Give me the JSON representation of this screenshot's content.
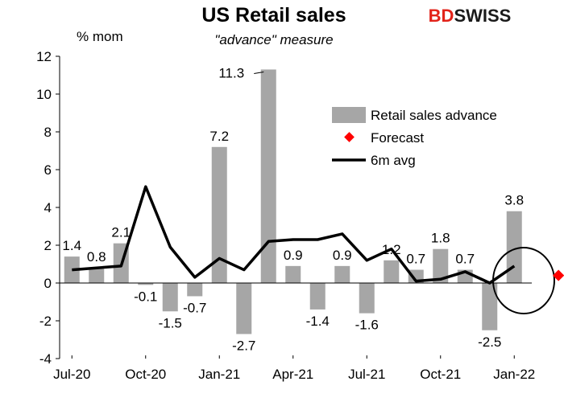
{
  "brand": {
    "logo_part1": "BD",
    "logo_part2": "SWISS",
    "accent_color": "#e2231a"
  },
  "chart_data": {
    "type": "bar",
    "title": "US Retail sales",
    "subtitle": "\"advance\" measure",
    "ylabel": "% mom",
    "ylim": [
      -4,
      12
    ],
    "yticks": [
      -4,
      -2,
      0,
      2,
      4,
      6,
      8,
      10,
      12
    ],
    "categories": [
      "Jul-20",
      "Aug-20",
      "Sep-20",
      "Oct-20",
      "Nov-20",
      "Dec-20",
      "Jan-21",
      "Feb-21",
      "Mar-21",
      "Apr-21",
      "May-21",
      "Jun-21",
      "Jul-21",
      "Aug-21",
      "Sep-21",
      "Oct-21",
      "Nov-21",
      "Dec-21",
      "Jan-22"
    ],
    "x_tick_labels": [
      "Jul-20",
      "Oct-20",
      "Jan-21",
      "Apr-21",
      "Jul-21",
      "Oct-21",
      "Jan-22"
    ],
    "legend_position": "right",
    "series": [
      {
        "name": "Retail sales advance",
        "kind": "bar",
        "color": "#a6a6a6",
        "values": [
          1.4,
          0.8,
          2.1,
          -0.1,
          -1.5,
          -0.7,
          7.2,
          -2.7,
          11.3,
          0.9,
          -1.4,
          0.9,
          -1.6,
          1.2,
          0.7,
          1.8,
          0.7,
          -2.5,
          3.8
        ],
        "labels": [
          "1.4",
          "0.8",
          "2.1",
          "-0.1",
          "-1.5",
          "-0.7",
          "7.2",
          "-2.7",
          "11.3",
          "0.9",
          "-1.4",
          "0.9",
          "-1.6",
          "1.2",
          "0.7",
          "1.8",
          "0.7",
          "-2.5",
          "3.8"
        ]
      },
      {
        "name": "Forecast",
        "kind": "marker",
        "color": "#ff0000",
        "category": "Feb-22",
        "value": 0.4,
        "label": "0.4"
      },
      {
        "name": "6m avg",
        "kind": "line",
        "color": "#000000",
        "values": [
          0.7,
          0.8,
          0.9,
          5.1,
          1.9,
          0.3,
          1.3,
          0.7,
          2.2,
          2.3,
          2.3,
          2.6,
          1.2,
          1.8,
          0.1,
          0.2,
          0.6,
          0.0,
          0.9
        ]
      }
    ]
  }
}
